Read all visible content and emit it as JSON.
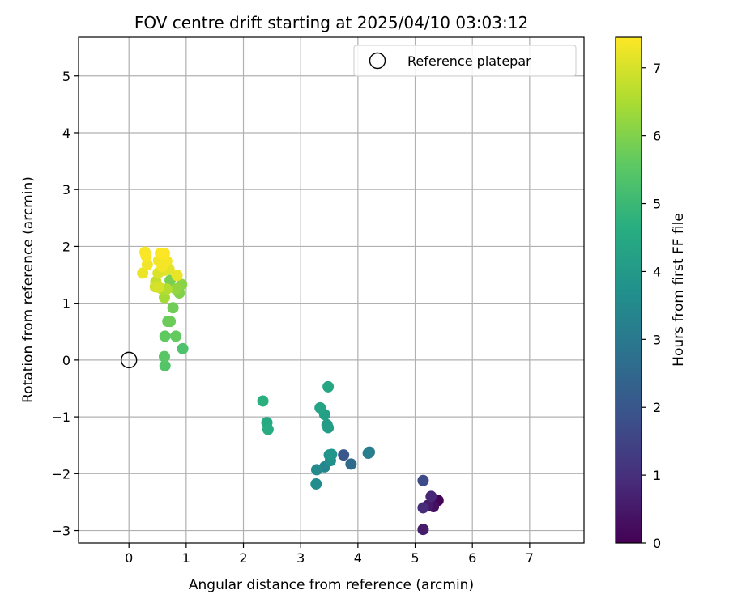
{
  "chart_data": {
    "type": "scatter",
    "title": "FOV centre drift starting at 2025/04/10 03:03:12",
    "xlabel": "Angular distance from reference (arcmin)",
    "ylabel": "Rotation from reference (arcmin)",
    "xlim": [
      -0.88,
      7.95
    ],
    "ylim": [
      -3.22,
      5.68
    ],
    "x_ticks": [
      "0",
      "1",
      "2",
      "3",
      "4",
      "5",
      "6",
      "7"
    ],
    "y_ticks": [
      "−3",
      "−2",
      "−1",
      "0",
      "1",
      "2",
      "3",
      "4",
      "5"
    ],
    "grid": true,
    "legend": {
      "position": "top-right",
      "entries": [
        "Reference platepar"
      ]
    },
    "reference": {
      "x": 0,
      "y": 0
    },
    "colorbar": {
      "label": "Hours from first FF file",
      "range": [
        0,
        7.45
      ],
      "ticks": [
        "0",
        "1",
        "2",
        "3",
        "4",
        "5",
        "6",
        "7"
      ],
      "colormap": "viridis"
    },
    "points": [
      {
        "x": 5.4,
        "y": -2.47,
        "h": 0.05
      },
      {
        "x": 5.32,
        "y": -2.58,
        "h": 0.3
      },
      {
        "x": 5.22,
        "y": -2.56,
        "h": 0.5
      },
      {
        "x": 5.28,
        "y": -2.4,
        "h": 0.8
      },
      {
        "x": 5.14,
        "y": -2.6,
        "h": 0.9
      },
      {
        "x": 5.14,
        "y": -2.98,
        "h": 0.6
      },
      {
        "x": 5.14,
        "y": -2.12,
        "h": 1.7
      },
      {
        "x": 3.75,
        "y": -1.67,
        "h": 2.0
      },
      {
        "x": 3.88,
        "y": -1.83,
        "h": 2.6
      },
      {
        "x": 4.2,
        "y": -1.62,
        "h": 3.0
      },
      {
        "x": 4.18,
        "y": -1.64,
        "h": 3.2
      },
      {
        "x": 3.42,
        "y": -1.88,
        "h": 3.4
      },
      {
        "x": 3.28,
        "y": -1.93,
        "h": 3.5
      },
      {
        "x": 3.27,
        "y": -2.18,
        "h": 3.6
      },
      {
        "x": 3.52,
        "y": -1.77,
        "h": 3.7
      },
      {
        "x": 3.5,
        "y": -1.67,
        "h": 3.8
      },
      {
        "x": 3.54,
        "y": -1.66,
        "h": 3.9
      },
      {
        "x": 3.46,
        "y": -1.14,
        "h": 4.0
      },
      {
        "x": 3.48,
        "y": -1.19,
        "h": 4.1
      },
      {
        "x": 3.42,
        "y": -0.96,
        "h": 4.2
      },
      {
        "x": 3.34,
        "y": -0.84,
        "h": 4.3
      },
      {
        "x": 3.48,
        "y": -0.47,
        "h": 4.4
      },
      {
        "x": 2.41,
        "y": -1.1,
        "h": 4.5
      },
      {
        "x": 2.43,
        "y": -1.22,
        "h": 4.6
      },
      {
        "x": 2.34,
        "y": -0.72,
        "h": 4.7
      },
      {
        "x": 0.94,
        "y": 0.2,
        "h": 5.3
      },
      {
        "x": 0.63,
        "y": -0.1,
        "h": 5.4
      },
      {
        "x": 0.62,
        "y": 0.06,
        "h": 5.5
      },
      {
        "x": 0.63,
        "y": 0.42,
        "h": 5.6
      },
      {
        "x": 0.82,
        "y": 0.42,
        "h": 5.65
      },
      {
        "x": 0.68,
        "y": 0.68,
        "h": 5.7
      },
      {
        "x": 0.72,
        "y": 0.68,
        "h": 5.75
      },
      {
        "x": 0.77,
        "y": 0.92,
        "h": 5.8
      },
      {
        "x": 0.72,
        "y": 1.4,
        "h": 5.9
      },
      {
        "x": 0.88,
        "y": 1.18,
        "h": 6.0
      },
      {
        "x": 0.92,
        "y": 1.33,
        "h": 6.1
      },
      {
        "x": 0.82,
        "y": 1.25,
        "h": 6.2
      },
      {
        "x": 0.62,
        "y": 1.1,
        "h": 6.4
      },
      {
        "x": 0.58,
        "y": 1.25,
        "h": 6.5
      },
      {
        "x": 0.66,
        "y": 1.25,
        "h": 6.6
      },
      {
        "x": 0.47,
        "y": 1.38,
        "h": 6.8
      },
      {
        "x": 0.46,
        "y": 1.29,
        "h": 6.9
      },
      {
        "x": 0.52,
        "y": 1.28,
        "h": 7.0
      },
      {
        "x": 0.51,
        "y": 1.53,
        "h": 7.05
      },
      {
        "x": 0.62,
        "y": 1.58,
        "h": 7.1
      },
      {
        "x": 0.7,
        "y": 1.6,
        "h": 7.15
      },
      {
        "x": 0.84,
        "y": 1.49,
        "h": 7.2
      },
      {
        "x": 0.24,
        "y": 1.53,
        "h": 7.25
      },
      {
        "x": 0.32,
        "y": 1.68,
        "h": 7.3
      },
      {
        "x": 0.52,
        "y": 1.75,
        "h": 7.3
      },
      {
        "x": 0.58,
        "y": 1.65,
        "h": 7.35
      },
      {
        "x": 0.66,
        "y": 1.74,
        "h": 7.35
      },
      {
        "x": 0.28,
        "y": 1.9,
        "h": 7.4
      },
      {
        "x": 0.3,
        "y": 1.83,
        "h": 7.4
      },
      {
        "x": 0.55,
        "y": 1.88,
        "h": 7.42
      },
      {
        "x": 0.62,
        "y": 1.88,
        "h": 7.45
      }
    ]
  }
}
